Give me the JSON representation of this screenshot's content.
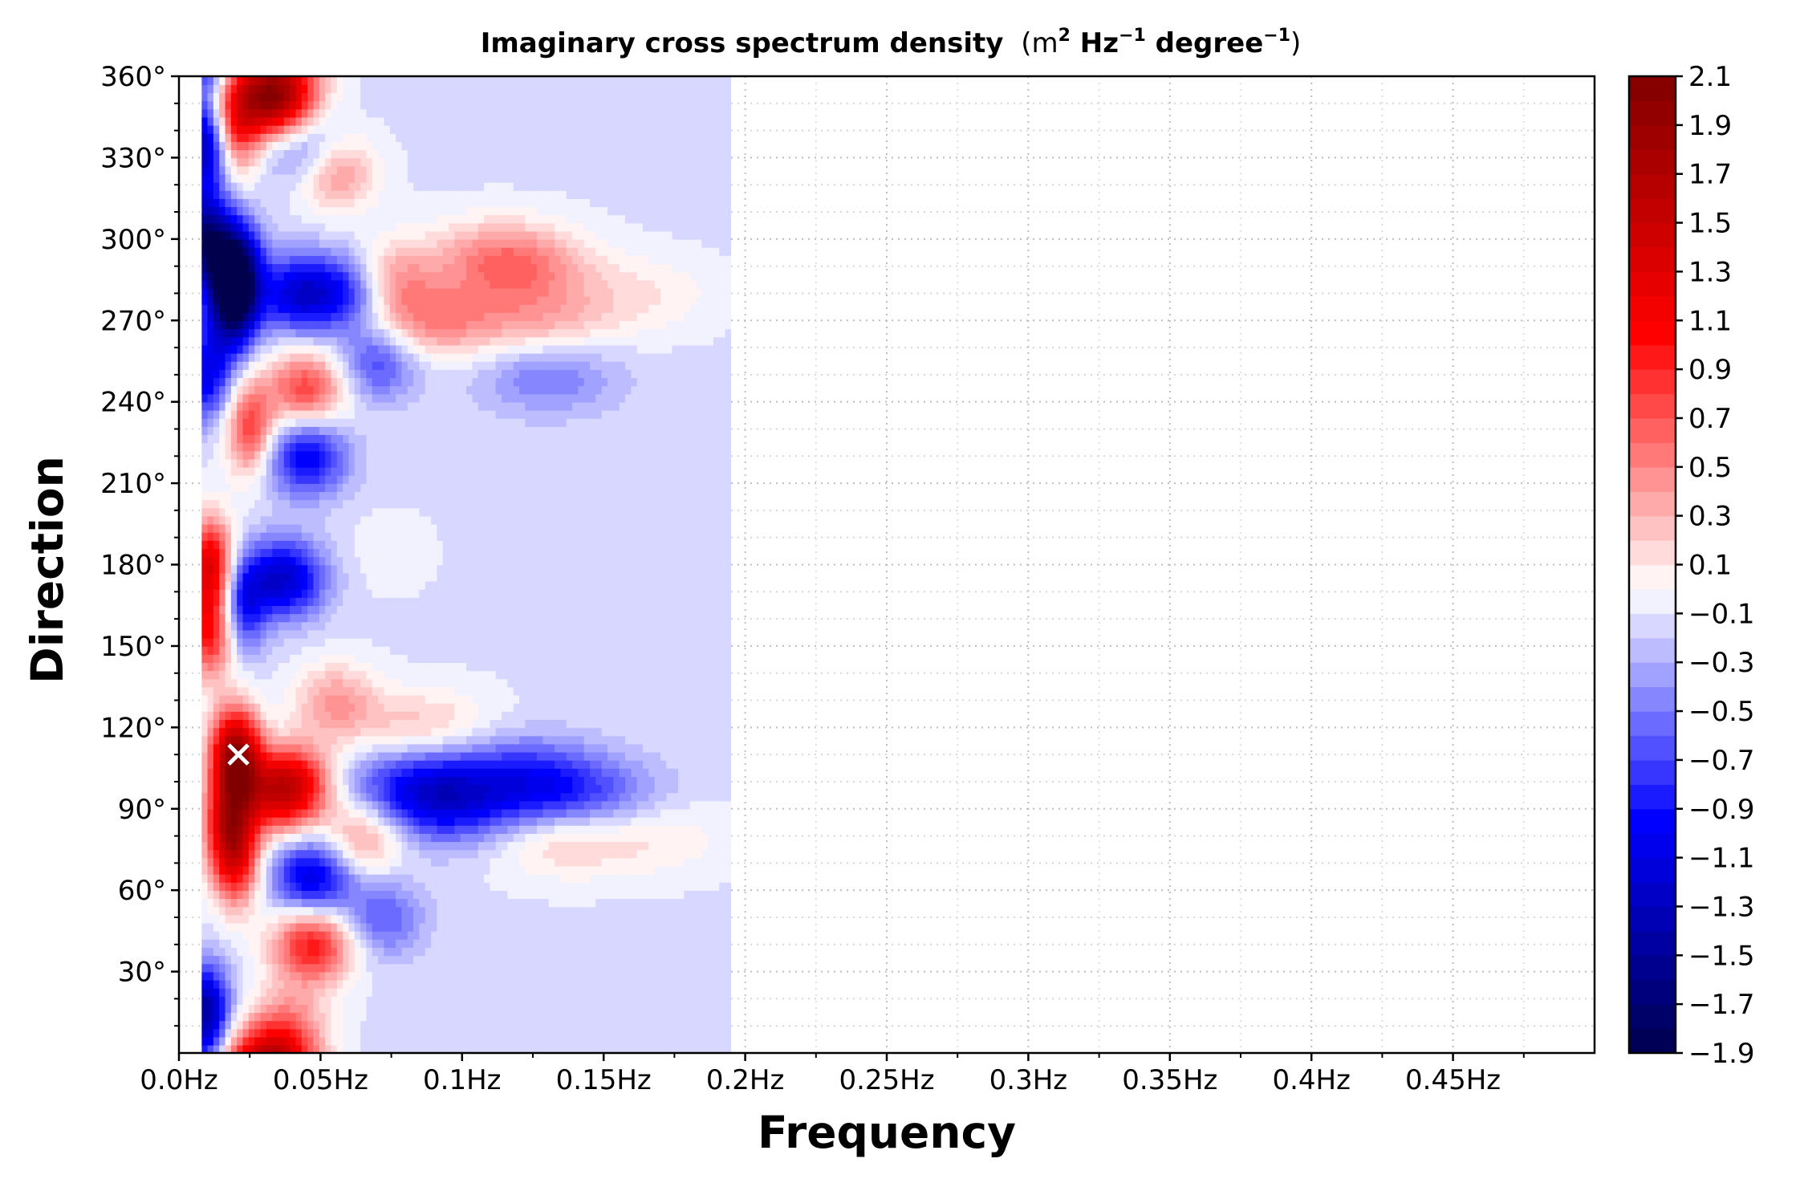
{
  "chart_data": {
    "type": "heatmap",
    "subtype": "filled-contour (polar spectrum in cartesian frequency-direction axes)",
    "title": "Imaginary cross spectrum density",
    "title_units": "(m² Hz⁻¹ degree⁻¹)",
    "title_units_parts": {
      "open": "(m",
      "sup1": "2",
      "mid1": " Hz",
      "sup2": "−1",
      "mid2": " degree",
      "sup3": "−1",
      "close": ")"
    },
    "xlabel": "Frequency",
    "ylabel": "Direction",
    "xlim": [
      0.0,
      0.5
    ],
    "ylim": [
      0,
      360
    ],
    "x_ticks": [
      {
        "value": 0.0,
        "label": "0.0Hz"
      },
      {
        "value": 0.05,
        "label": "0.05Hz"
      },
      {
        "value": 0.1,
        "label": "0.1Hz"
      },
      {
        "value": 0.15,
        "label": "0.15Hz"
      },
      {
        "value": 0.2,
        "label": "0.2Hz"
      },
      {
        "value": 0.25,
        "label": "0.25Hz"
      },
      {
        "value": 0.3,
        "label": "0.3Hz"
      },
      {
        "value": 0.35,
        "label": "0.35Hz"
      },
      {
        "value": 0.4,
        "label": "0.4Hz"
      },
      {
        "value": 0.45,
        "label": "0.45Hz"
      }
    ],
    "y_ticks": [
      {
        "value": 30,
        "label": "30°"
      },
      {
        "value": 60,
        "label": "60°"
      },
      {
        "value": 90,
        "label": "90°"
      },
      {
        "value": 120,
        "label": "120°"
      },
      {
        "value": 150,
        "label": "150°"
      },
      {
        "value": 180,
        "label": "180°"
      },
      {
        "value": 210,
        "label": "210°"
      },
      {
        "value": 240,
        "label": "240°"
      },
      {
        "value": 270,
        "label": "270°"
      },
      {
        "value": 300,
        "label": "300°"
      },
      {
        "value": 330,
        "label": "330°"
      },
      {
        "value": 360,
        "label": "360°"
      }
    ],
    "grid": true,
    "data_extent": {
      "f_min": 0.008,
      "f_max": 0.195,
      "dir_min": 0,
      "dir_max": 360
    },
    "peak_marker": {
      "frequency": 0.021,
      "direction": 110,
      "symbol": "x",
      "color": "#ffffff"
    },
    "colorbar": {
      "min": -1.9,
      "max": 2.1,
      "position": "right",
      "tick_labels": [
        "2.1",
        "1.9",
        "1.7",
        "1.5",
        "1.3",
        "1.1",
        "0.9",
        "0.7",
        "0.5",
        "0.3",
        "0.1",
        "−0.1",
        "−0.3",
        "−0.5",
        "−0.7",
        "−0.9",
        "−1.1",
        "−1.3",
        "−1.5",
        "−1.7",
        "−1.9"
      ],
      "tick_values": [
        2.1,
        1.9,
        1.7,
        1.5,
        1.3,
        1.1,
        0.9,
        0.7,
        0.5,
        0.3,
        0.1,
        -0.1,
        -0.3,
        -0.5,
        -0.7,
        -0.9,
        -1.1,
        -1.3,
        -1.5,
        -1.7,
        -1.9
      ],
      "colormap": "seismic"
    },
    "features": [
      {
        "frequency": 0.009,
        "direction": 300,
        "value": -1.5
      },
      {
        "frequency": 0.009,
        "direction": 335,
        "value": -1.3
      },
      {
        "frequency": 0.009,
        "direction": 15,
        "value": -1.4
      },
      {
        "frequency": 0.01,
        "direction": 250,
        "value": -0.9
      },
      {
        "frequency": 0.011,
        "direction": 180,
        "value": 1.4
      },
      {
        "frequency": 0.011,
        "direction": 155,
        "value": 1.1
      },
      {
        "frequency": 0.02,
        "direction": 110,
        "value": 2.0
      },
      {
        "frequency": 0.018,
        "direction": 85,
        "value": 1.3
      },
      {
        "frequency": 0.02,
        "direction": 290,
        "value": -1.6
      },
      {
        "frequency": 0.019,
        "direction": 275,
        "value": -1.4
      },
      {
        "frequency": 0.02,
        "direction": 340,
        "value": 0.9
      },
      {
        "frequency": 0.02,
        "direction": 70,
        "value": 1.0
      },
      {
        "frequency": 0.022,
        "direction": 165,
        "value": -0.8
      },
      {
        "frequency": 0.025,
        "direction": 230,
        "value": 0.9
      },
      {
        "frequency": 0.03,
        "direction": 355,
        "value": 0.9
      },
      {
        "frequency": 0.035,
        "direction": 350,
        "value": 1.3
      },
      {
        "frequency": 0.042,
        "direction": 280,
        "value": -1.0
      },
      {
        "frequency": 0.037,
        "direction": 175,
        "value": -1.1
      },
      {
        "frequency": 0.035,
        "direction": 95,
        "value": 0.9
      },
      {
        "frequency": 0.04,
        "direction": 100,
        "value": 1.0
      },
      {
        "frequency": 0.045,
        "direction": 245,
        "value": 0.9
      },
      {
        "frequency": 0.045,
        "direction": 220,
        "value": -0.9
      },
      {
        "frequency": 0.047,
        "direction": 65,
        "value": -1.0
      },
      {
        "frequency": 0.047,
        "direction": 40,
        "value": 1.1
      },
      {
        "frequency": 0.038,
        "direction": 10,
        "value": 0.6
      },
      {
        "frequency": 0.043,
        "direction": 335,
        "value": -0.6
      },
      {
        "frequency": 0.055,
        "direction": 325,
        "value": 0.6
      },
      {
        "frequency": 0.06,
        "direction": 280,
        "value": -0.7
      },
      {
        "frequency": 0.07,
        "direction": 255,
        "value": -0.6
      },
      {
        "frequency": 0.055,
        "direction": 130,
        "value": 0.5
      },
      {
        "frequency": 0.065,
        "direction": 80,
        "value": 0.6
      },
      {
        "frequency": 0.072,
        "direction": 50,
        "value": -0.5
      },
      {
        "frequency": 0.075,
        "direction": 285,
        "value": 0.5
      },
      {
        "frequency": 0.09,
        "direction": 270,
        "value": 0.6
      },
      {
        "frequency": 0.085,
        "direction": 100,
        "value": -0.7
      },
      {
        "frequency": 0.095,
        "direction": 90,
        "value": -0.6
      },
      {
        "frequency": 0.085,
        "direction": 120,
        "value": 0.4
      },
      {
        "frequency": 0.075,
        "direction": 185,
        "value": 0.1
      },
      {
        "frequency": 0.11,
        "direction": 295,
        "value": 0.3
      },
      {
        "frequency": 0.12,
        "direction": 290,
        "value": 0.5
      },
      {
        "frequency": 0.13,
        "direction": 270,
        "value": 0.4
      },
      {
        "frequency": 0.13,
        "direction": 95,
        "value": -0.5
      },
      {
        "frequency": 0.135,
        "direction": 80,
        "value": 0.4
      },
      {
        "frequency": 0.12,
        "direction": 105,
        "value": -0.4
      },
      {
        "frequency": 0.15,
        "direction": 95,
        "value": -0.3
      },
      {
        "frequency": 0.13,
        "direction": 250,
        "value": -0.4
      },
      {
        "frequency": 0.165,
        "direction": 280,
        "value": 0.2
      },
      {
        "frequency": 0.17,
        "direction": 80,
        "value": 0.2
      }
    ]
  }
}
